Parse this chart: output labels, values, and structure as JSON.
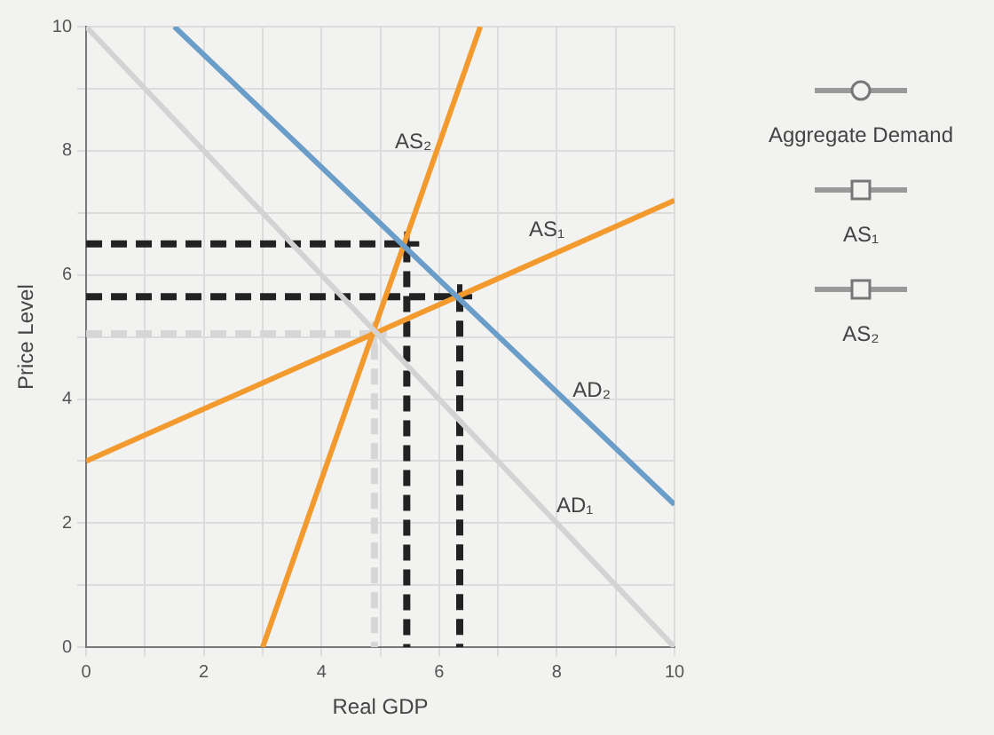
{
  "chart_data": {
    "type": "line",
    "xlabel": "Real GDP",
    "ylabel": "Price Level",
    "xlim": [
      0,
      10
    ],
    "ylim": [
      0,
      10
    ],
    "xticks": [
      0,
      {
        "value": 1,
        "label": null
      },
      2,
      {
        "value": 3,
        "label": null
      },
      4,
      {
        "value": 5,
        "label": null
      },
      6,
      {
        "value": 7,
        "label": null
      },
      8,
      {
        "value": 9,
        "label": null
      },
      10
    ],
    "yticks": [
      0,
      {
        "value": 1,
        "label": null
      },
      2,
      {
        "value": 3,
        "label": null
      },
      4,
      {
        "value": 5,
        "label": null
      },
      6,
      {
        "value": 7,
        "label": null
      },
      8,
      {
        "value": 9,
        "label": null
      },
      10
    ],
    "grid": true,
    "marker": "none",
    "annotations": [
      "Aggregate Demand",
      "AS₁",
      "AS₂"
    ],
    "series": [
      {
        "name": "AD₁",
        "color": "#d3d3d3",
        "x": [
          0,
          10
        ],
        "values": [
          10,
          0
        ]
      },
      {
        "name": "AD₂",
        "color": "#6b9dc9",
        "x": [
          1.5,
          10
        ],
        "values": [
          10,
          2.3
        ]
      },
      {
        "name": "AS₁",
        "color": "#f39a2e",
        "x": [
          0,
          10
        ],
        "values": [
          3,
          7.2
        ]
      },
      {
        "name": "AS₂",
        "color": "#f39a2e",
        "x": [
          3,
          6.7
        ],
        "values": [
          0,
          10
        ]
      },
      {
        "color": "#d6d6d6",
        "line_style": "dashed",
        "x": [
          0,
          4.9,
          4.9
        ],
        "values": [
          5.05,
          5.05,
          0
        ]
      },
      {
        "color": "#222222",
        "line_style": "dashed",
        "x": [
          0,
          5.45,
          5.45
        ],
        "values": [
          6.5,
          6.5,
          0
        ]
      },
      {
        "color": "#222222",
        "line_style": "dashed",
        "x": [
          0,
          6.35,
          6.35
        ],
        "values": [
          5.65,
          5.65,
          0
        ]
      },
      {
        "type": "scatter",
        "marker": "cross",
        "color": "#222222",
        "x": [
          5.45,
          6.35
        ],
        "values": [
          6.5,
          5.65
        ]
      },
      {
        "type": "scatter",
        "marker": "cross",
        "color": "#d6d6d6",
        "x": [
          4.9
        ],
        "values": [
          5.05
        ]
      }
    ]
  }
}
